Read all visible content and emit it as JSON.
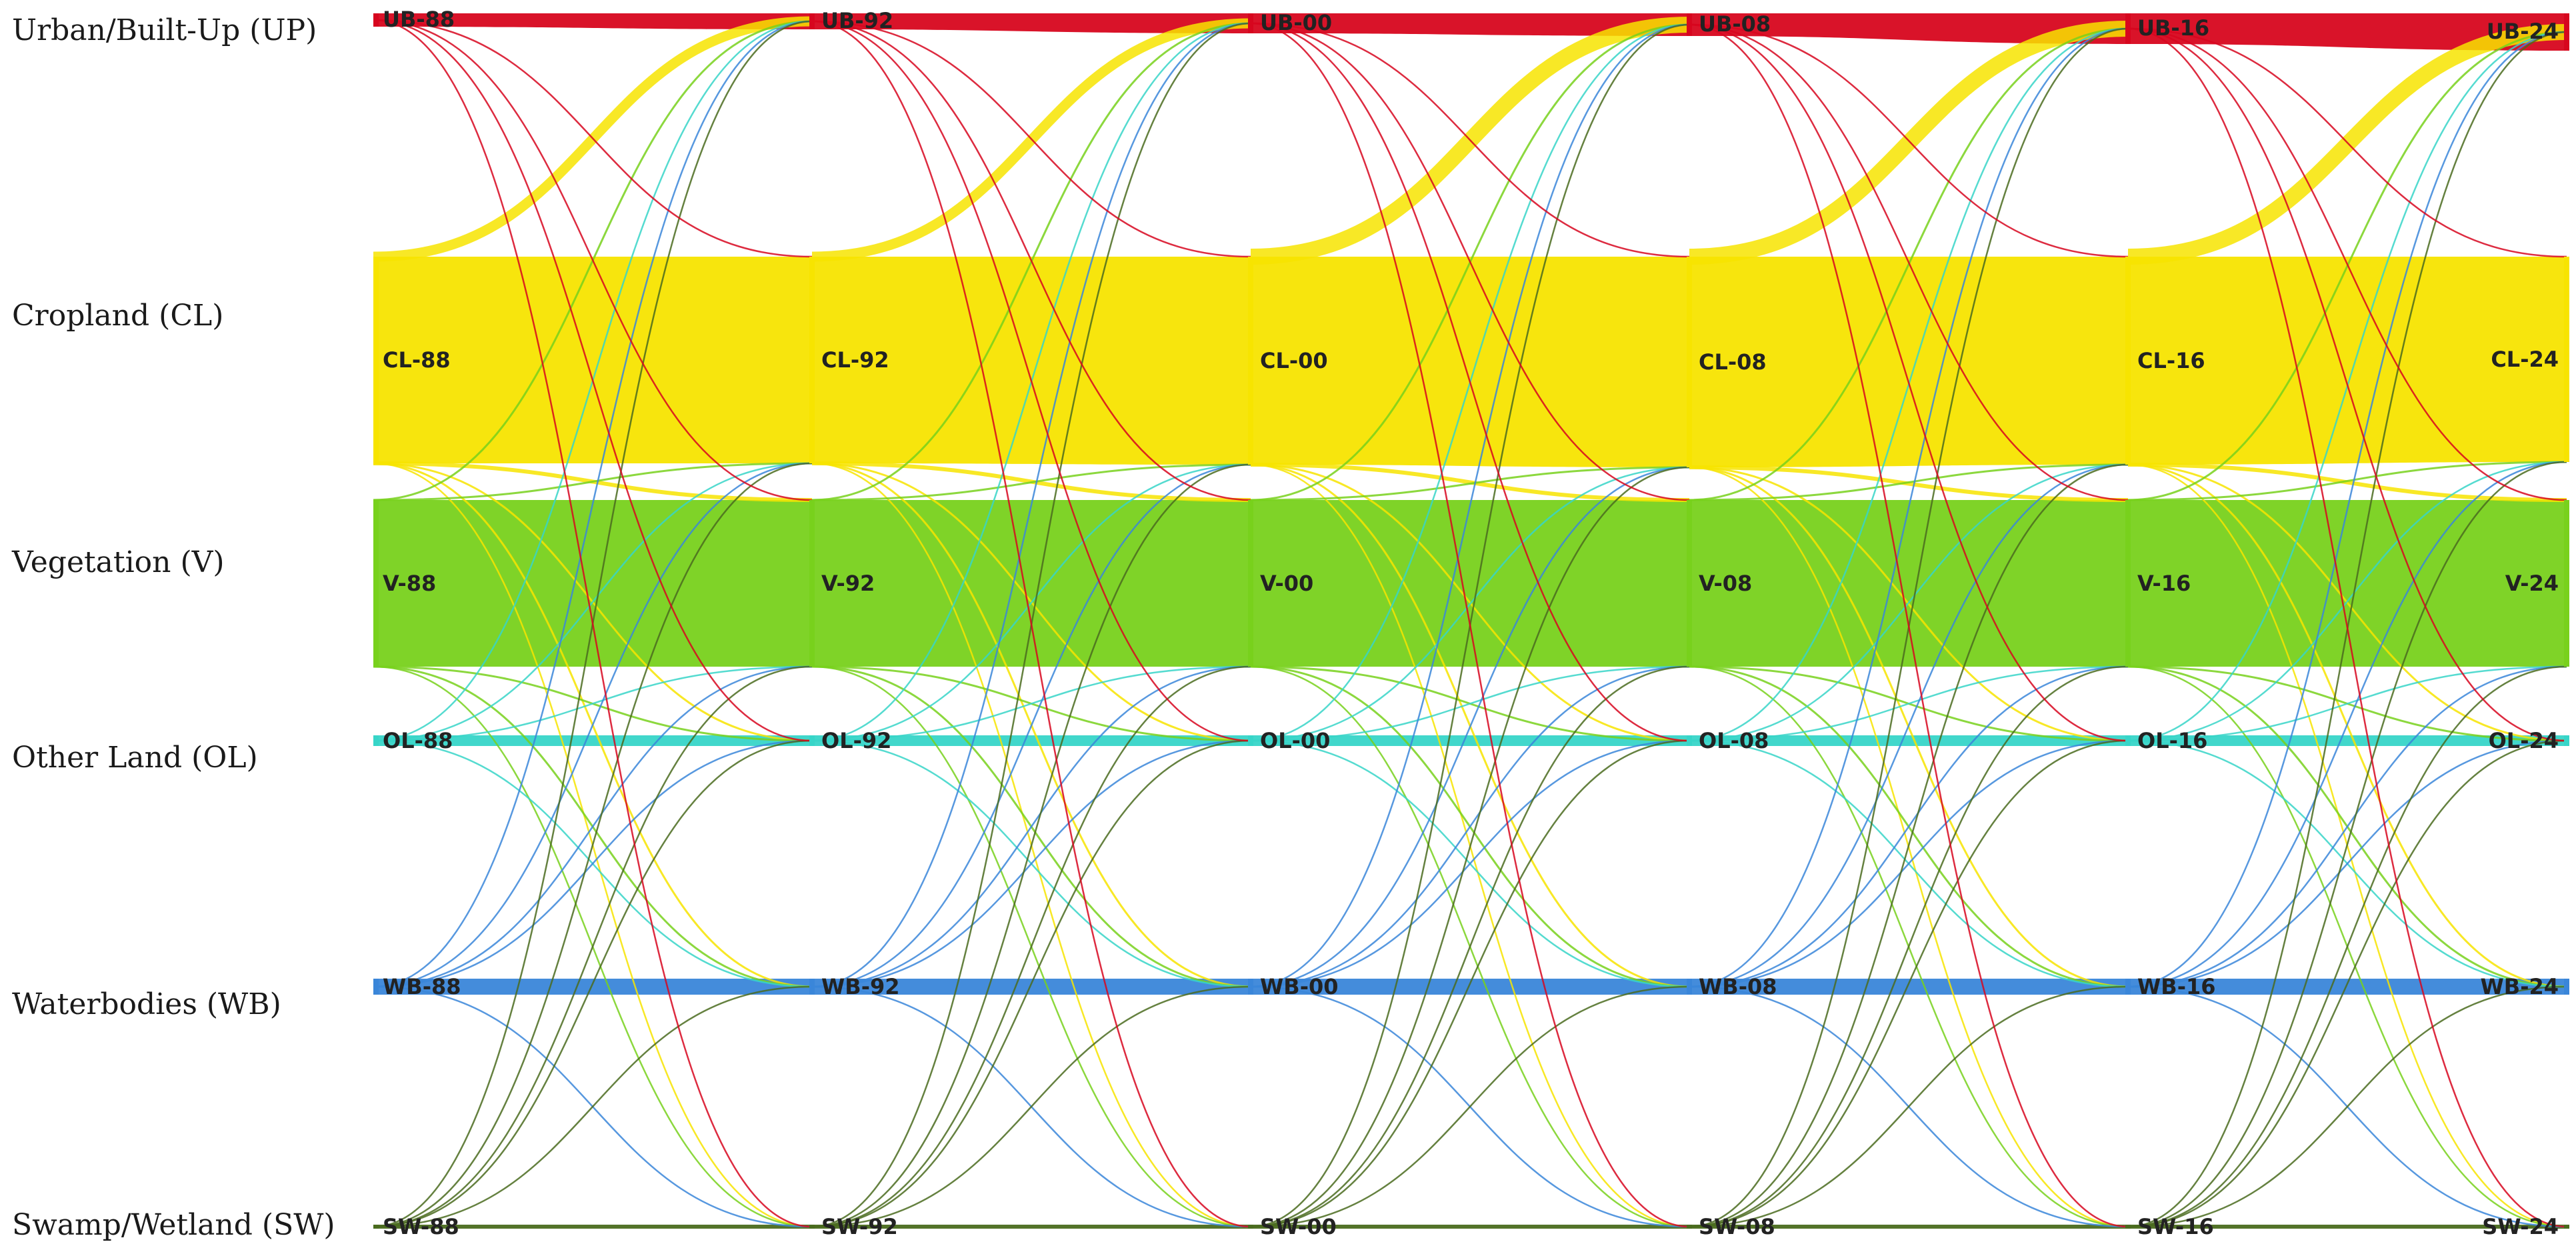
{
  "diagram": {
    "type": "sankey",
    "title": "",
    "years": [
      "88",
      "92",
      "00",
      "08",
      "16",
      "24"
    ],
    "categories": [
      {
        "key": "UB",
        "row_label": "Urban/Built-Up (UP)",
        "color": "#d7061e"
      },
      {
        "key": "CL",
        "row_label": "Cropland (CL)",
        "color": "#f7e400"
      },
      {
        "key": "V",
        "row_label": "Vegetation (V)",
        "color": "#78d11c"
      },
      {
        "key": "OL",
        "row_label": "Other Land (OL)",
        "color": "#37d5c8"
      },
      {
        "key": "WB",
        "row_label": "Waterbodies (WB)",
        "color": "#3a86d9"
      },
      {
        "key": "SW",
        "row_label": "Swamp/Wetland (SW)",
        "color": "#4a6b1e"
      }
    ],
    "node_labels": [
      [
        "UB-88",
        "UB-92",
        "UB-00",
        "UB-08",
        "UB-16",
        "UB-24"
      ],
      [
        "CL-88",
        "CL-92",
        "CL-00",
        "CL-08",
        "CL-16",
        "CL-24"
      ],
      [
        "V-88",
        "V-92",
        "V-00",
        "V-08",
        "V-16",
        "V-24"
      ],
      [
        "OL-88",
        "OL-92",
        "OL-00",
        "OL-08",
        "OL-16",
        "OL-24"
      ],
      [
        "WB-88",
        "WB-92",
        "WB-00",
        "WB-08",
        "WB-16",
        "WB-24"
      ],
      [
        "SW-88",
        "SW-92",
        "SW-00",
        "SW-08",
        "SW-16",
        "SW-24"
      ]
    ],
    "relative_size": {
      "UB": [
        1.0,
        1.2,
        1.5,
        1.7,
        2.3,
        2.8
      ],
      "CL": [
        15.5,
        15.5,
        15.6,
        15.8,
        15.6,
        15.4
      ],
      "V": [
        12.5,
        12.5,
        12.5,
        12.5,
        12.5,
        12.5
      ],
      "OL": [
        0.8,
        0.8,
        0.8,
        0.8,
        0.8,
        0.8
      ],
      "WB": [
        1.2,
        1.2,
        1.2,
        1.2,
        1.2,
        1.2
      ],
      "SW": [
        0.3,
        0.3,
        0.3,
        0.3,
        0.3,
        0.3
      ]
    },
    "flows": [
      {
        "from": "CL",
        "to": "UB",
        "weight": 1.5
      },
      {
        "from": "CL",
        "to": "V",
        "weight": 0.6
      },
      {
        "from": "CL",
        "to": "OL",
        "weight": 0.3
      },
      {
        "from": "CL",
        "to": "WB",
        "weight": 0.3
      },
      {
        "from": "CL",
        "to": "SW",
        "weight": 0.2
      },
      {
        "from": "V",
        "to": "UB",
        "weight": 0.3
      },
      {
        "from": "V",
        "to": "CL",
        "weight": 0.3
      },
      {
        "from": "V",
        "to": "OL",
        "weight": 0.3
      },
      {
        "from": "V",
        "to": "WB",
        "weight": 0.3
      },
      {
        "from": "V",
        "to": "SW",
        "weight": 0.2
      },
      {
        "from": "OL",
        "to": "UB",
        "weight": 0.2
      },
      {
        "from": "OL",
        "to": "CL",
        "weight": 0.2
      },
      {
        "from": "OL",
        "to": "V",
        "weight": 0.2
      },
      {
        "from": "OL",
        "to": "WB",
        "weight": 0.2
      },
      {
        "from": "WB",
        "to": "UB",
        "weight": 0.2
      },
      {
        "from": "WB",
        "to": "CL",
        "weight": 0.2
      },
      {
        "from": "WB",
        "to": "V",
        "weight": 0.2
      },
      {
        "from": "WB",
        "to": "OL",
        "weight": 0.2
      },
      {
        "from": "WB",
        "to": "SW",
        "weight": 0.2
      },
      {
        "from": "SW",
        "to": "UB",
        "weight": 0.2
      },
      {
        "from": "SW",
        "to": "CL",
        "weight": 0.2
      },
      {
        "from": "SW",
        "to": "V",
        "weight": 0.2
      },
      {
        "from": "SW",
        "to": "OL",
        "weight": 0.2
      },
      {
        "from": "SW",
        "to": "WB",
        "weight": 0.2
      },
      {
        "from": "UB",
        "to": "CL",
        "weight": 0.2
      },
      {
        "from": "UB",
        "to": "V",
        "weight": 0.2
      },
      {
        "from": "UB",
        "to": "OL",
        "weight": 0.2
      },
      {
        "from": "UB",
        "to": "SW",
        "weight": 0.2
      }
    ]
  }
}
